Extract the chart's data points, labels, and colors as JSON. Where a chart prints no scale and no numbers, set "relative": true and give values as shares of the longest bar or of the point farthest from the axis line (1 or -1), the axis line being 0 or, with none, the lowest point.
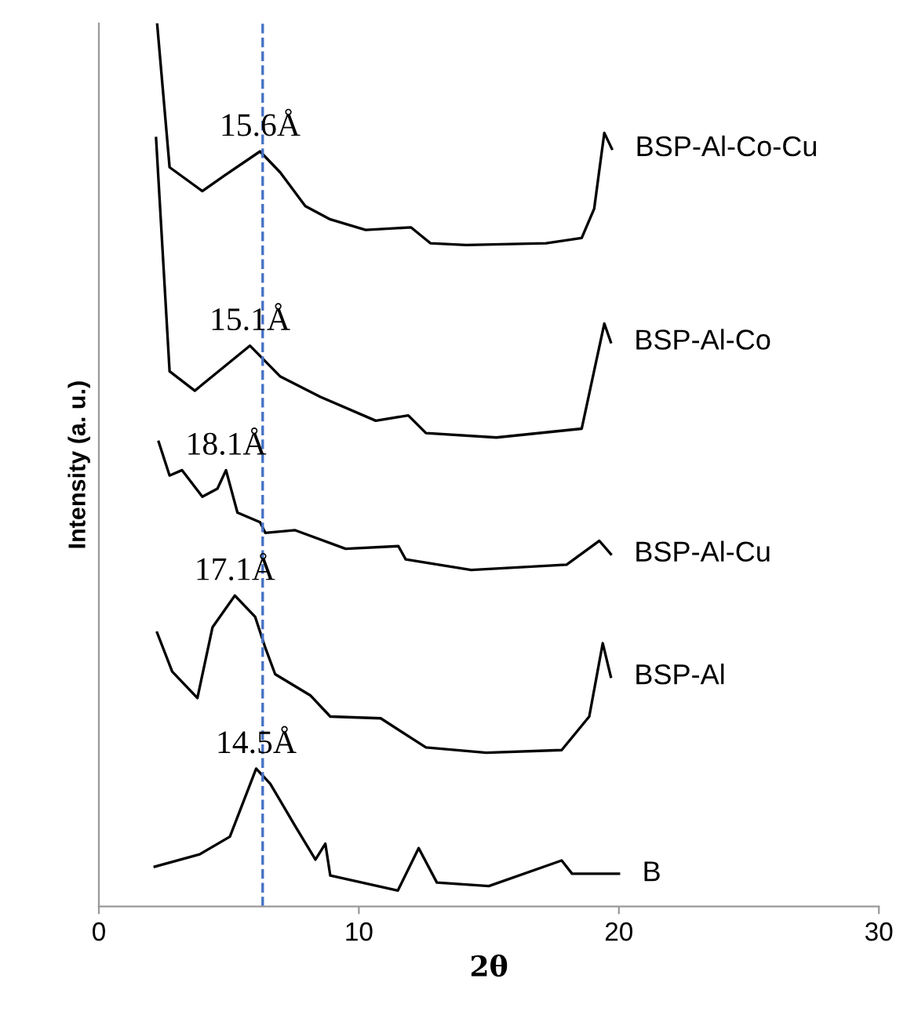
{
  "chart_data": {
    "type": "line",
    "relative": true,
    "xlabel": "2θ",
    "ylabel": "Intensity (a. u.)",
    "xlim": [
      0,
      30
    ],
    "xticks": [
      0,
      10,
      20,
      30
    ],
    "grid": false,
    "marker": "none",
    "line_style": "solid",
    "series": [
      {
        "name": "BSP-Al-Co-Cu",
        "color": "#000000",
        "x": [
          2.24,
          2.72,
          3.98,
          4.85,
          6.2,
          6.98,
          7.94,
          8.9,
          10.26,
          12.0,
          12.75,
          14.13,
          17.2,
          18.57,
          19.05,
          19.44,
          19.73
        ],
        "values": [
          1.0,
          0.837,
          0.81,
          0.828,
          0.855,
          0.831,
          0.793,
          0.778,
          0.766,
          0.769,
          0.751,
          0.749,
          0.751,
          0.757,
          0.79,
          0.876,
          0.858
        ]
      },
      {
        "name": "BSP-Al-Co",
        "color": "#000000",
        "x": [
          2.2,
          2.72,
          3.69,
          5.81,
          6.98,
          8.52,
          10.65,
          11.9,
          12.58,
          15.29,
          18.57,
          19.44,
          19.69
        ],
        "values": [
          0.87,
          0.606,
          0.584,
          0.635,
          0.6,
          0.577,
          0.55,
          0.556,
          0.536,
          0.531,
          0.541,
          0.66,
          0.639
        ]
      },
      {
        "name": "BSP-Al-Cu",
        "color": "#000000",
        "x": [
          2.3,
          2.72,
          3.2,
          3.98,
          4.56,
          4.89,
          5.33,
          6.2,
          6.4,
          7.55,
          9.49,
          11.52,
          11.8,
          14.32,
          17.99,
          19.25,
          19.69
        ],
        "values": [
          0.526,
          0.488,
          0.494,
          0.464,
          0.473,
          0.494,
          0.446,
          0.435,
          0.423,
          0.426,
          0.405,
          0.408,
          0.393,
          0.381,
          0.387,
          0.414,
          0.399
        ]
      },
      {
        "name": "BSP-Al",
        "color": "#000000",
        "x": [
          2.24,
          2.82,
          3.79,
          4.37,
          5.23,
          6.01,
          6.4,
          6.78,
          8.13,
          8.9,
          10.84,
          12.58,
          14.9,
          17.8,
          18.86,
          19.38,
          19.69
        ],
        "values": [
          0.31,
          0.266,
          0.236,
          0.316,
          0.352,
          0.328,
          0.293,
          0.263,
          0.239,
          0.215,
          0.213,
          0.18,
          0.174,
          0.177,
          0.215,
          0.298,
          0.26
        ]
      },
      {
        "name": "B",
        "color": "#000000",
        "x": [
          2.15,
          3.88,
          5.04,
          6.05,
          6.59,
          7.55,
          8.33,
          8.71,
          8.9,
          11.5,
          12.3,
          13.0,
          15.0,
          17.8,
          18.2,
          20.0
        ],
        "values": [
          0.045,
          0.059,
          0.079,
          0.156,
          0.139,
          0.091,
          0.053,
          0.071,
          0.035,
          0.018,
          0.066,
          0.027,
          0.023,
          0.052,
          0.037,
          0.037
        ]
      }
    ],
    "ref_lines": [
      {
        "axis": "x",
        "value": 6.3,
        "color": "#4472c4",
        "line_style": "dashed"
      }
    ],
    "annotations": [
      {
        "text": "15.6Å",
        "x": 6.2,
        "y": 0.855
      },
      {
        "text": "15.1Å",
        "x": 5.81,
        "y": 0.635
      },
      {
        "text": "18.1Å",
        "x": 4.89,
        "y": 0.494
      },
      {
        "text": "17.1Å",
        "x": 5.23,
        "y": 0.352
      },
      {
        "text": "14.5Å",
        "x": 6.05,
        "y": 0.156
      }
    ]
  }
}
